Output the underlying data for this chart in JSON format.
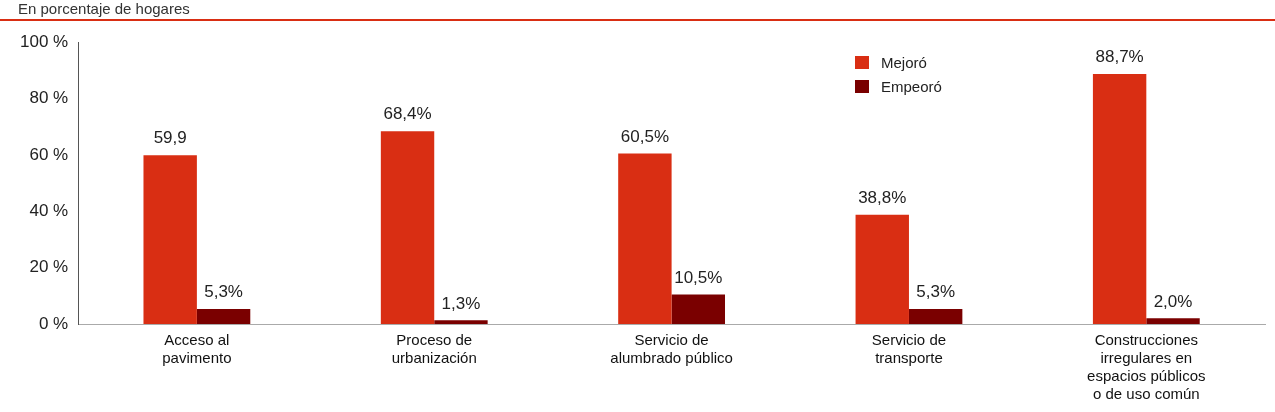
{
  "chart_data": {
    "type": "bar",
    "subtitle": "En porcentaje de hogares",
    "categories": [
      "Acceso al pavimento",
      "Proceso de urbanización",
      "Servicio de alumbrado público",
      "Servicio de transporte",
      "Construcciones irregulares en espacios públicos o de uso común"
    ],
    "series": [
      {
        "name": "Mejoró",
        "color": "#d92e13",
        "values": [
          59.9,
          68.4,
          60.5,
          38.8,
          88.7
        ],
        "value_labels": [
          "59,9",
          "68,4%",
          "60,5%",
          "38,8%",
          "88,7%"
        ]
      },
      {
        "name": "Empeoró",
        "color": "#7a0000",
        "values": [
          5.3,
          1.3,
          10.5,
          5.3,
          2.0
        ],
        "value_labels": [
          "5,3%",
          "1,3%",
          "10,5%",
          "5,3%",
          "2,0%"
        ]
      }
    ],
    "ylim": [
      0,
      100
    ],
    "yticks": [
      {
        "value": 0,
        "label": "0 %"
      },
      {
        "value": 20,
        "label": "20 %"
      },
      {
        "value": 40,
        "label": "40 %"
      },
      {
        "value": 60,
        "label": "60 %"
      },
      {
        "value": 80,
        "label": "80 %"
      },
      {
        "value": 100,
        "label": "100 %"
      }
    ],
    "grid": false,
    "legend": "top right"
  }
}
